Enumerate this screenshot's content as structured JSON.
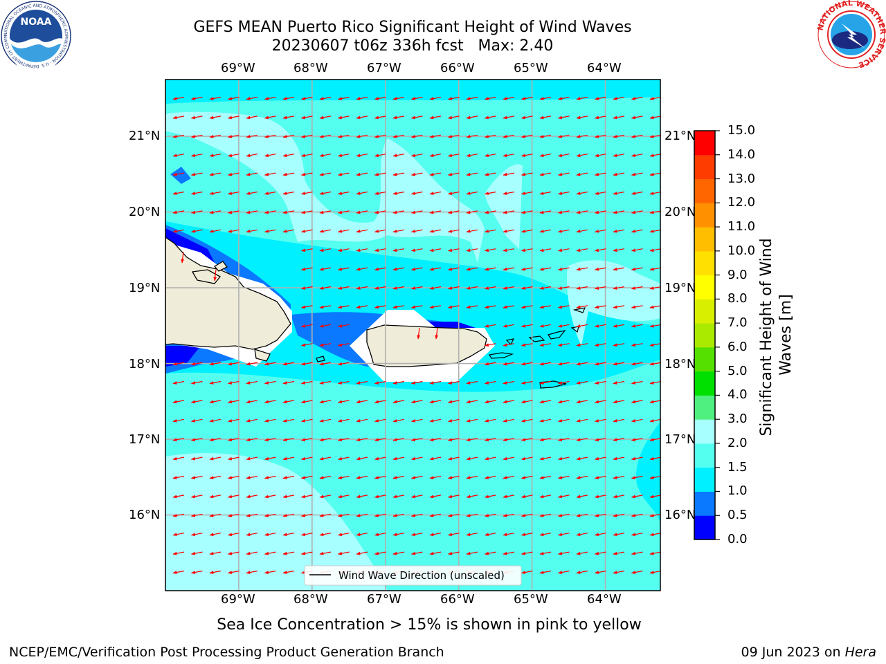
{
  "title": {
    "line1": "GEFS MEAN Puerto Rico Significant Height of Wind Waves",
    "line2": "20230607 t06z 336h fcst   Max: 2.40"
  },
  "logos": {
    "left": {
      "name": "noaa-logo",
      "text": "NOAA",
      "ring_text": "NATIONAL OCEANIC AND ATMOSPHERIC ADMINISTRATION · U.S. DEPARTMENT OF COMMERCE"
    },
    "right": {
      "name": "nws-logo",
      "ring_text": "NATIONAL WEATHER SERVICE"
    }
  },
  "map": {
    "lon_labels": [
      "69°W",
      "68°W",
      "67°W",
      "66°W",
      "65°W",
      "64°W"
    ],
    "lat_labels": [
      "21°N",
      "20°N",
      "19°N",
      "18°N",
      "17°N",
      "16°N"
    ],
    "lon_range": [
      -70.0,
      -63.25
    ],
    "lat_range": [
      15.0,
      21.75
    ],
    "grid": true,
    "arrow_color": "#ff0000",
    "land_color": "#efedd9",
    "legend": {
      "label": "Wind Wave Direction (unscaled)",
      "placement": "lower-center"
    }
  },
  "colorbar": {
    "label": "Significant Height of Wind Waves [m]",
    "ticks": [
      "0.0",
      "0.5",
      "1.0",
      "1.5",
      "2.0",
      "3.0",
      "4.0",
      "5.0",
      "6.0",
      "7.0",
      "8.0",
      "9.0",
      "10.0",
      "11.0",
      "12.0",
      "13.0",
      "14.0",
      "15.0"
    ],
    "colors": [
      "#0000ff",
      "#0a78ff",
      "#00f0ff",
      "#55fff0",
      "#a8ffff",
      "#50f080",
      "#00e000",
      "#55e000",
      "#aaea00",
      "#d8f000",
      "#ffff00",
      "#ffe000",
      "#ffbe00",
      "#ff9000",
      "#ff6600",
      "#ff3c00",
      "#ff0000"
    ]
  },
  "caption": "Sea Ice Concentration > 15% is shown in pink to yellow",
  "footer": {
    "left": "NCEP/EMC/Verification Post Processing Product Generation Branch",
    "date": "09 Jun 2023 on ",
    "host": "Hera"
  }
}
